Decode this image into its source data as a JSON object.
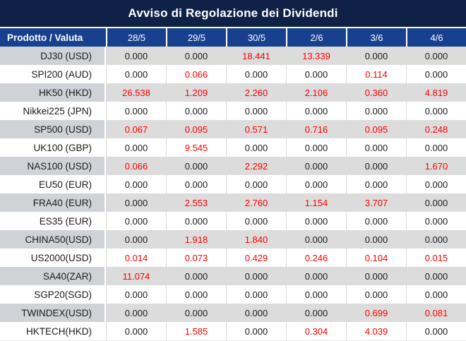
{
  "title": "Avviso di Regolazione dei Dividendi",
  "chart_data": {
    "type": "table",
    "title": "Avviso di Regolazione dei Dividendi",
    "columns": [
      "Prodotto / Valuta",
      "28/5",
      "29/5",
      "30/5",
      "2/6",
      "3/6",
      "4/6"
    ],
    "rows": [
      {
        "product": "DJ30 (USD)",
        "values": [
          "0.000",
          "0.000",
          "18.441",
          "13.339",
          "0.000",
          "0.000"
        ]
      },
      {
        "product": "SPI200 (AUD)",
        "values": [
          "0.000",
          "0.066",
          "0.000",
          "0.000",
          "0.114",
          "0.000"
        ]
      },
      {
        "product": "HK50 (HKD)",
        "values": [
          "26.538",
          "1.209",
          "2.260",
          "2.106",
          "0.360",
          "4.819"
        ]
      },
      {
        "product": "Nikkei225 (JPN)",
        "values": [
          "0.000",
          "0.000",
          "0.000",
          "0.000",
          "0.000",
          "0.000"
        ]
      },
      {
        "product": "SP500 (USD)",
        "values": [
          "0.067",
          "0.095",
          "0.571",
          "0.716",
          "0.095",
          "0.248"
        ]
      },
      {
        "product": "UK100 (GBP)",
        "values": [
          "0.000",
          "9.545",
          "0.000",
          "0.000",
          "0.000",
          "0.000"
        ]
      },
      {
        "product": "NAS100 (USD)",
        "values": [
          "0.066",
          "0.000",
          "2.292",
          "0.000",
          "0.000",
          "1.670"
        ]
      },
      {
        "product": "EU50 (EUR)",
        "values": [
          "0.000",
          "0.000",
          "0.000",
          "0.000",
          "0.000",
          "0.000"
        ]
      },
      {
        "product": "FRA40 (EUR)",
        "values": [
          "0.000",
          "2.553",
          "2.760",
          "1.154",
          "3.707",
          "0.000"
        ]
      },
      {
        "product": "ES35 (EUR)",
        "values": [
          "0.000",
          "0.000",
          "0.000",
          "0.000",
          "0.000",
          "0.000"
        ]
      },
      {
        "product": "CHINA50(USD)",
        "values": [
          "0.000",
          "1.918",
          "1.840",
          "0.000",
          "0.000",
          "0.000"
        ]
      },
      {
        "product": "US2000(USD)",
        "values": [
          "0.014",
          "0.073",
          "0.429",
          "0.246",
          "0.104",
          "0.015"
        ]
      },
      {
        "product": "SA40(ZAR)",
        "values": [
          "11.074",
          "0.000",
          "0.000",
          "0.000",
          "0.000",
          "0.000"
        ]
      },
      {
        "product": "SGP20(SGD)",
        "values": [
          "0.000",
          "0.000",
          "0.000",
          "0.000",
          "0.000",
          "0.000"
        ]
      },
      {
        "product": "TWINDEX(USD)",
        "values": [
          "0.000",
          "0.000",
          "0.000",
          "0.000",
          "0.699",
          "0.081"
        ]
      },
      {
        "product": "HKTECH(HKD)",
        "values": [
          "0.000",
          "1.585",
          "0.000",
          "0.304",
          "4.039",
          "0.000"
        ]
      }
    ],
    "value_color_rule": "zero values shown in black, non-zero values shown in red"
  },
  "colors": {
    "title_bar_bg": "#0f2147",
    "header_bg": "#17418f",
    "header_text": "#ffffff",
    "alt_row_name_bg": "#cfd3d8",
    "alt_row_value_bg": "#dcdcdc",
    "zero_value_text": "#1a1a1a",
    "nonzero_value_text": "#ff0000"
  }
}
